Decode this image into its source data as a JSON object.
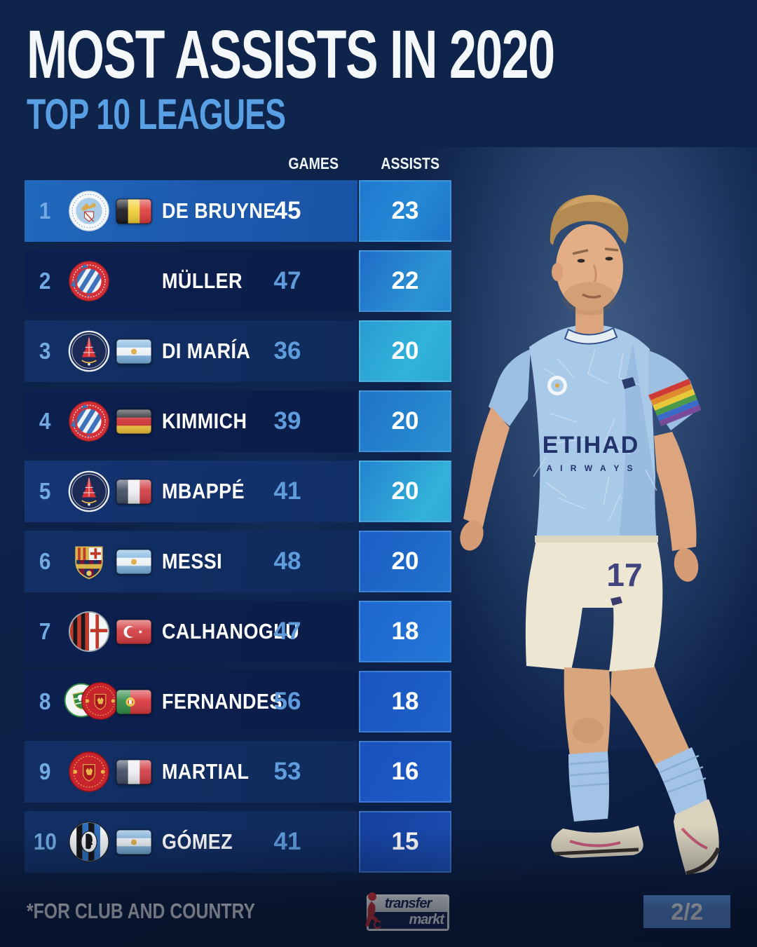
{
  "header": {
    "title": "MOST ASSISTS IN 2020",
    "subtitle": "TOP 10 LEAGUES"
  },
  "columns": {
    "games": "GAMES",
    "assists": "ASSISTS"
  },
  "rows": [
    {
      "rank": "1",
      "clubs": [
        "man-city"
      ],
      "flag": "belgium",
      "player": "DE BRUYNE",
      "games": "45",
      "assists": "23",
      "highlight": true
    },
    {
      "rank": "2",
      "clubs": [
        "bayern"
      ],
      "flag": null,
      "player": "MÜLLER",
      "games": "47",
      "assists": "22"
    },
    {
      "rank": "3",
      "clubs": [
        "psg"
      ],
      "flag": "argentina",
      "player": "DI MARÍA",
      "games": "36",
      "assists": "20"
    },
    {
      "rank": "4",
      "clubs": [
        "bayern"
      ],
      "flag": "germany",
      "player": "KIMMICH",
      "games": "39",
      "assists": "20"
    },
    {
      "rank": "5",
      "clubs": [
        "psg"
      ],
      "flag": "france",
      "player": "MBAPPÉ",
      "games": "41",
      "assists": "20"
    },
    {
      "rank": "6",
      "clubs": [
        "barcelona"
      ],
      "flag": "argentina",
      "player": "MESSI",
      "games": "48",
      "assists": "20"
    },
    {
      "rank": "7",
      "clubs": [
        "milan"
      ],
      "flag": "turkey",
      "player": "CALHANOGLU",
      "games": "47",
      "assists": "18"
    },
    {
      "rank": "8",
      "clubs": [
        "sporting",
        "man-united"
      ],
      "flag": "portugal",
      "player": "FERNANDES",
      "games": "56",
      "assists": "18"
    },
    {
      "rank": "9",
      "clubs": [
        "man-united"
      ],
      "flag": "france",
      "player": "MARTIAL",
      "games": "53",
      "assists": "16"
    },
    {
      "rank": "10",
      "clubs": [
        "atalanta"
      ],
      "flag": "argentina",
      "player": "GÓMEZ",
      "games": "41",
      "assists": "15"
    }
  ],
  "photo": {
    "shirt_sponsor": "ETIHAD",
    "shirt_sponsor_line2": "A I R W A Y S",
    "shorts_number": "17"
  },
  "footer": {
    "note": "*FOR CLUB AND COUNTRY",
    "page": "2/2",
    "logo_top": "transfer",
    "logo_bottom": "markt"
  },
  "colors": {
    "background": "#0e2349",
    "row_highlight": "#1f63b6",
    "row_dark": "#0d2251",
    "assists_cyan": "#2fa8d6",
    "assists_blue": "#1d5dc5",
    "accent_light_blue": "#589fe3",
    "rank_blue": "#72aae2",
    "games_blue": "#5f9cdc",
    "page_badge_blue": "#5b92dd",
    "text_white": "#ffffff"
  }
}
